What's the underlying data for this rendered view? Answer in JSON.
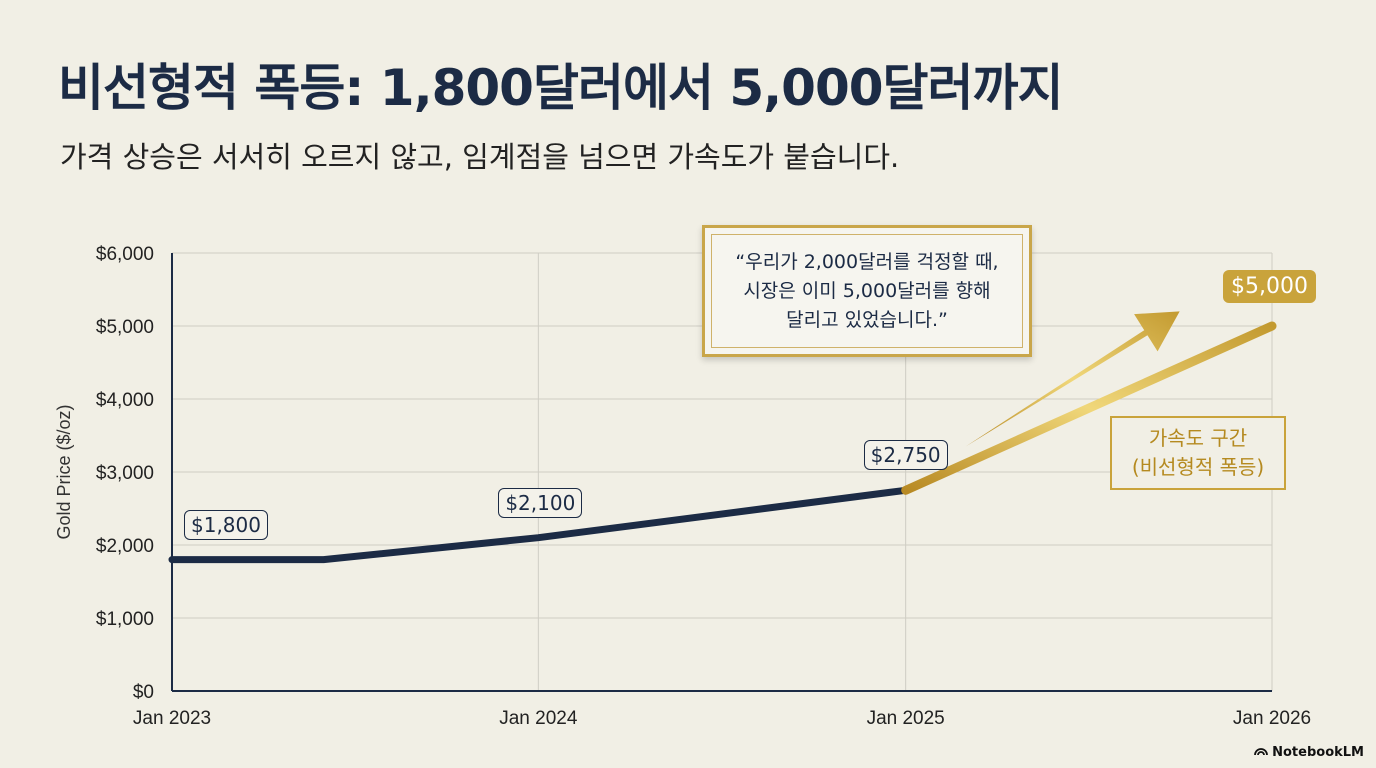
{
  "title": "비선형적 폭등: 1,800달러에서 5,000달러까지",
  "subtitle": "가격 상승은 서서히 오르지 않고, 임계점을 넘으면 가속도가 붙습니다.",
  "quote": "“우리가 2,000달러를 걱정할 때,\n시장은 이미 5,000달러를 향해\n달리고 있었습니다.”",
  "acceleration_label": "가속도 구간\n(비선형적 폭등)",
  "brand": "NotebookLM",
  "colors": {
    "navy": "#1c2b45",
    "gold": "#c9a33b",
    "background": "#f1efe5"
  },
  "chart_data": {
    "type": "line",
    "ylabel": "Gold Price ($/oz)",
    "xlabel": "",
    "ylim": [
      0,
      6000
    ],
    "yticks": [
      0,
      1000,
      2000,
      3000,
      4000,
      5000,
      6000
    ],
    "ytick_labels": [
      "$0",
      "$1,000",
      "$2,000",
      "$3,000",
      "$4,000",
      "$5,000",
      "$6,000"
    ],
    "xticks": [
      "Jan 2023",
      "Jan 2024",
      "Jan 2025",
      "Jan 2026"
    ],
    "grid": true,
    "series": [
      {
        "segment": "steady",
        "color": "#1c2b45",
        "points": [
          {
            "x": "2023-01",
            "y": 1800
          },
          {
            "x": "2023-06",
            "y": 1800
          },
          {
            "x": "2024-01",
            "y": 2100
          },
          {
            "x": "2025-01",
            "y": 2750
          }
        ]
      },
      {
        "segment": "acceleration",
        "color": "#c9a33b",
        "points": [
          {
            "x": "2025-01",
            "y": 2750
          },
          {
            "x": "2026-01",
            "y": 5000
          }
        ]
      }
    ],
    "annotations": [
      {
        "x": "2023-01",
        "y": 1800,
        "text": "$1,800"
      },
      {
        "x": "2024-01",
        "y": 2100,
        "text": "$2,100"
      },
      {
        "x": "2025-01",
        "y": 2750,
        "text": "$2,750"
      },
      {
        "x": "2026-01",
        "y": 5000,
        "text": "$5,000"
      }
    ]
  }
}
